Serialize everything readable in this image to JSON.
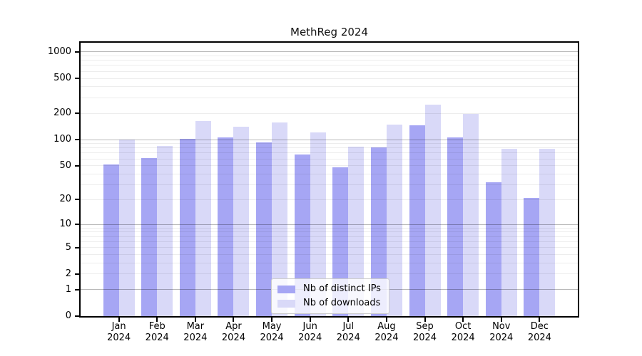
{
  "chart_data": {
    "type": "bar",
    "title": "MethReg 2024",
    "categories": [
      "Jan",
      "Feb",
      "Mar",
      "Apr",
      "May",
      "Jun",
      "Jul",
      "Aug",
      "Sep",
      "Oct",
      "Nov",
      "Dec"
    ],
    "year_label": "2024",
    "series": [
      {
        "name": "Nb of distinct IPs",
        "color": "#a6a6f4",
        "values": [
          52,
          61,
          102,
          105,
          92,
          68,
          48,
          81,
          145,
          105,
          32,
          21
        ]
      },
      {
        "name": "Nb of downloads",
        "color": "#d9d9f8",
        "values": [
          100,
          85,
          162,
          140,
          158,
          120,
          83,
          149,
          250,
          198,
          79,
          78
        ]
      }
    ],
    "yscale": "log1p",
    "yticks": [
      0,
      1,
      2,
      5,
      10,
      20,
      50,
      100,
      200,
      500,
      1000
    ],
    "ylim": [
      0,
      1200
    ],
    "xlabel": "",
    "ylabel": "",
    "grid": true,
    "legend_position": "bottom-center",
    "colors": {
      "major_gridline": "#b8b8b8",
      "minor_gridline": "#ededed",
      "spine": "#000000",
      "background": "#ffffff"
    }
  }
}
